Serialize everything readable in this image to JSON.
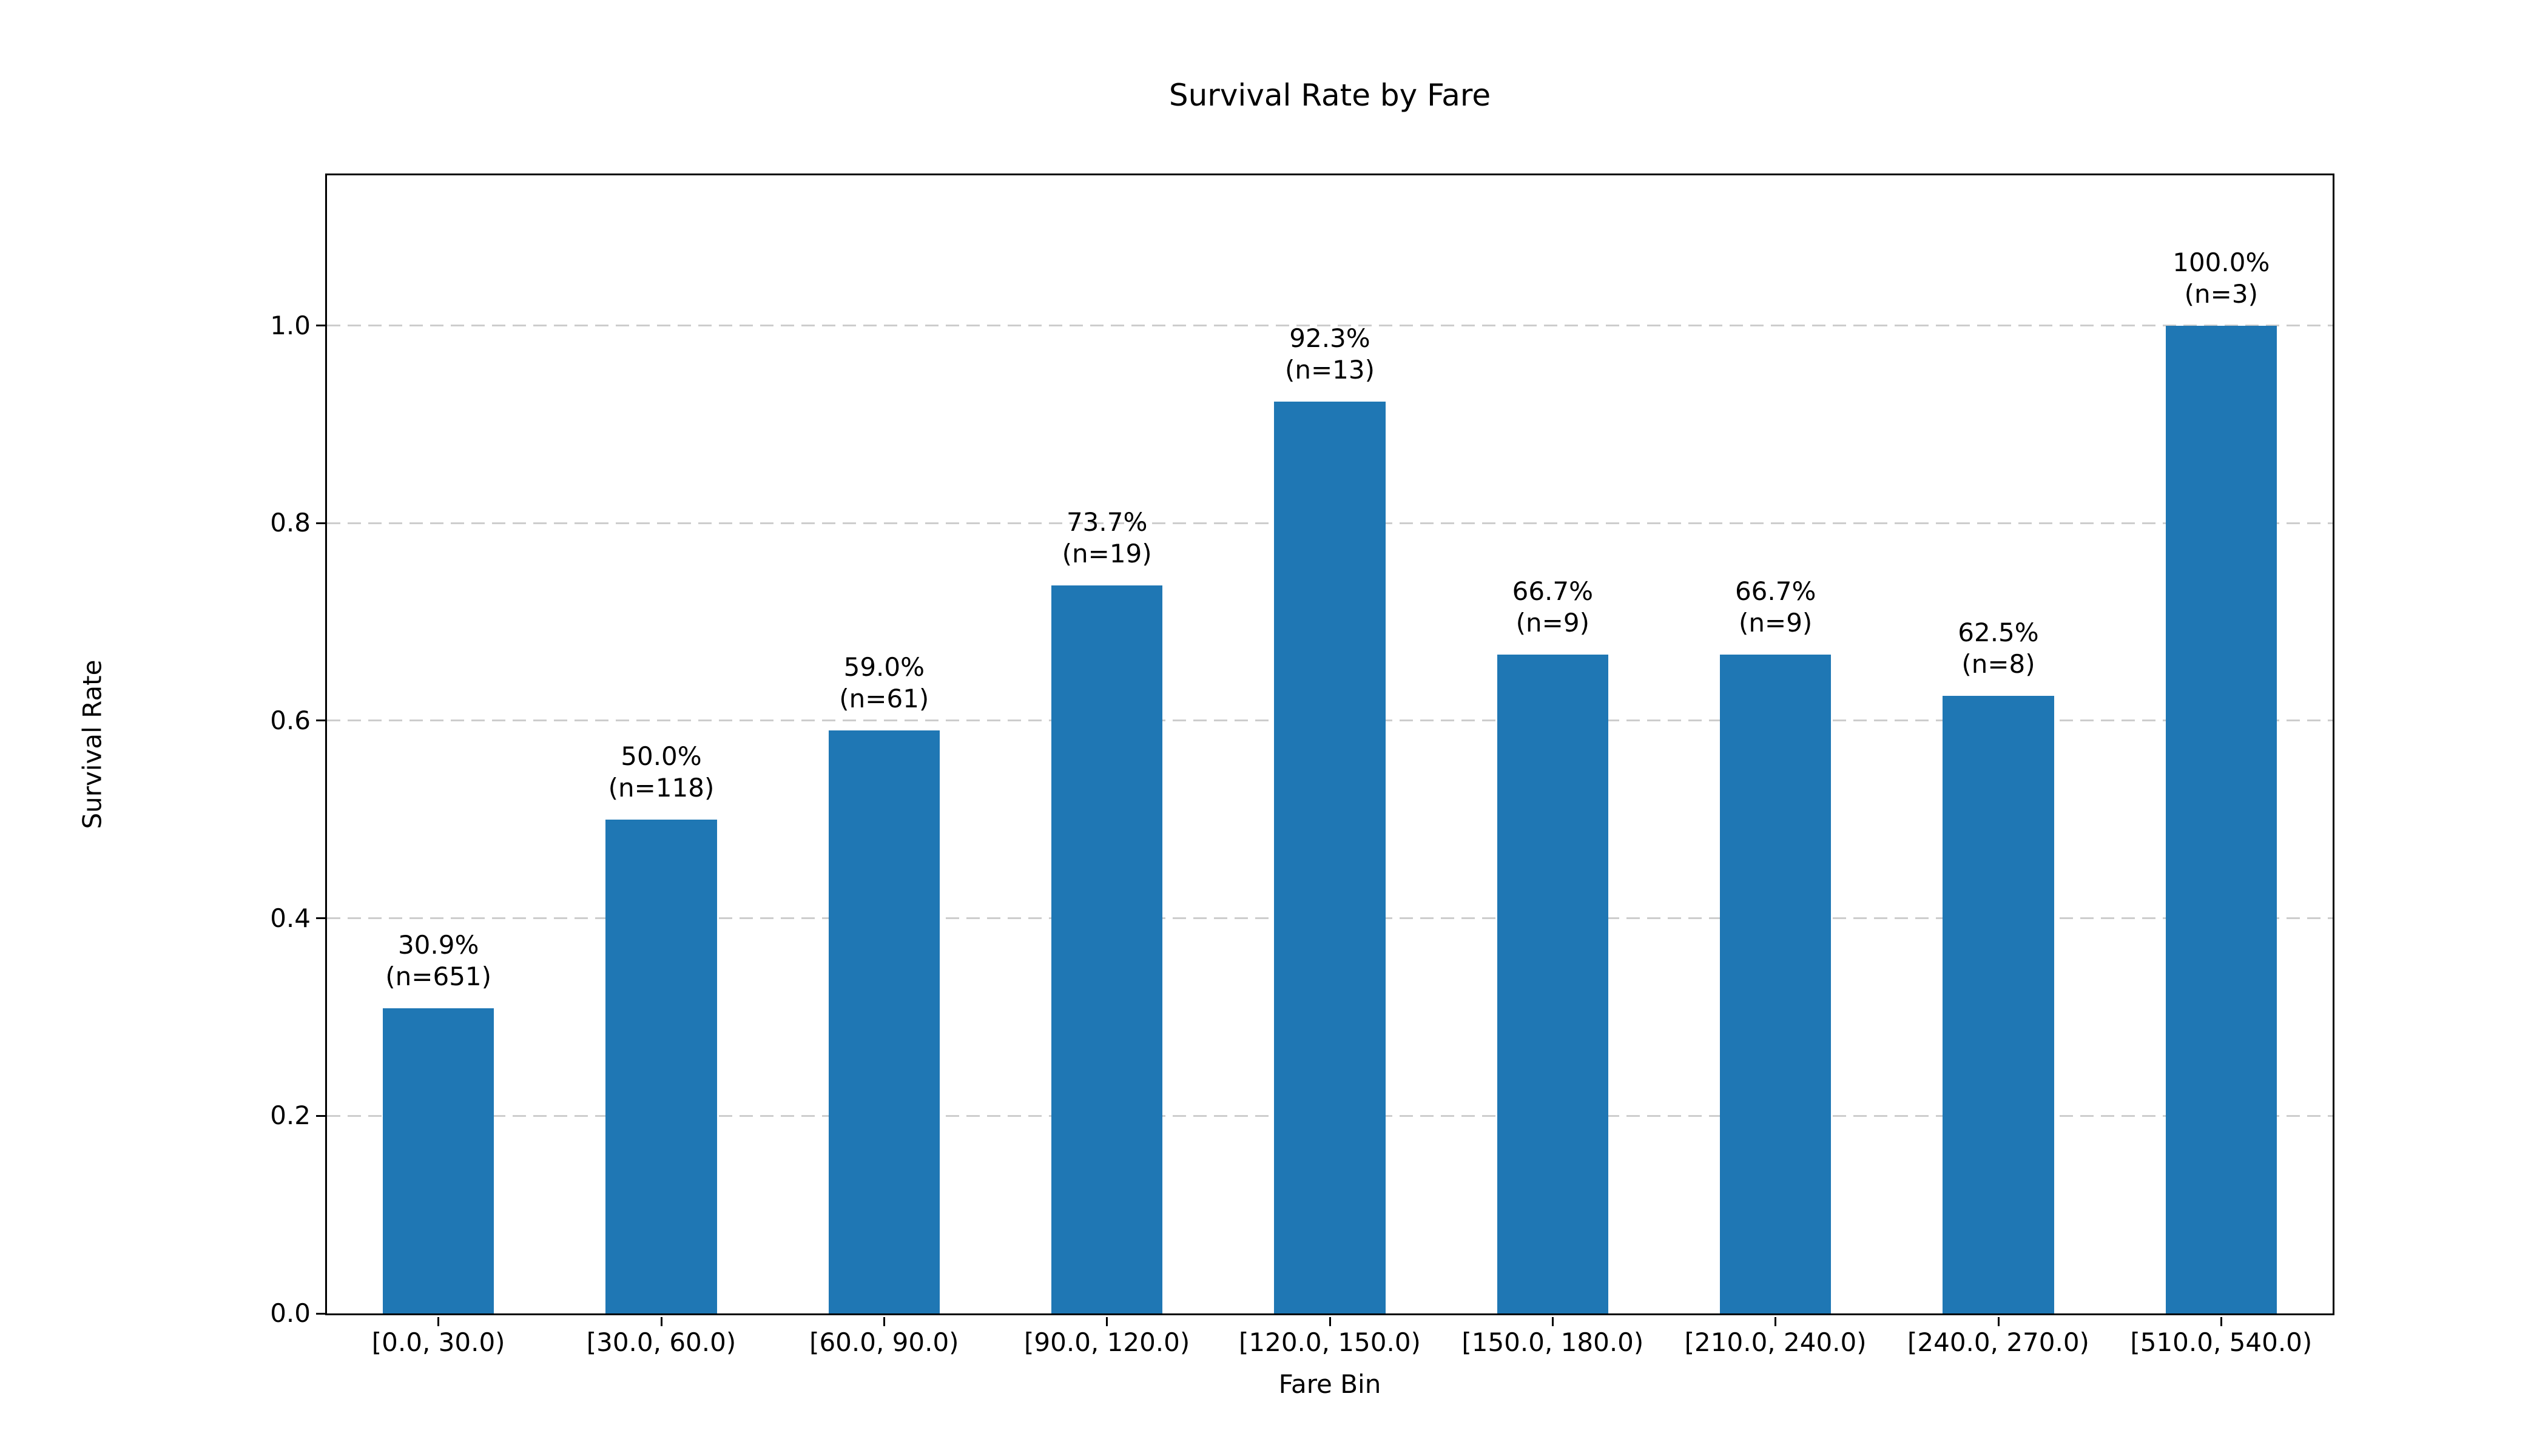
{
  "chart_data": {
    "type": "bar",
    "title": "Survival Rate by Fare",
    "xlabel": "Fare Bin",
    "ylabel": "Survival Rate",
    "categories": [
      "[0.0, 30.0)",
      "[30.0, 60.0)",
      "[60.0, 90.0)",
      "[90.0, 120.0)",
      "[120.0, 150.0)",
      "[150.0, 180.0)",
      "[210.0, 240.0)",
      "[240.0, 270.0)",
      "[510.0, 540.0)"
    ],
    "values": [
      0.309,
      0.5,
      0.59,
      0.737,
      0.923,
      0.667,
      0.667,
      0.625,
      1.0
    ],
    "counts": [
      651,
      118,
      61,
      19,
      13,
      9,
      9,
      8,
      3
    ],
    "bar_value_labels": [
      "30.9%",
      "50.0%",
      "59.0%",
      "73.7%",
      "92.3%",
      "66.7%",
      "66.7%",
      "62.5%",
      "100.0%"
    ],
    "bar_count_labels": [
      "(n=651)",
      "(n=118)",
      "(n=61)",
      "(n=19)",
      "(n=13)",
      "(n=9)",
      "(n=9)",
      "(n=8)",
      "(n=3)"
    ],
    "yticks": [
      0.0,
      0.2,
      0.4,
      0.6,
      0.8,
      1.0
    ],
    "ytick_labels": [
      "0.0",
      "0.2",
      "0.4",
      "0.6",
      "0.8",
      "1.0"
    ],
    "ylim": [
      0,
      1.152
    ],
    "bar_width_fraction": 0.5,
    "bar_color": "#1f77b4",
    "grid": {
      "axis": "y",
      "style": "dashed",
      "color": "#cdcdcd"
    },
    "legend": null
  }
}
